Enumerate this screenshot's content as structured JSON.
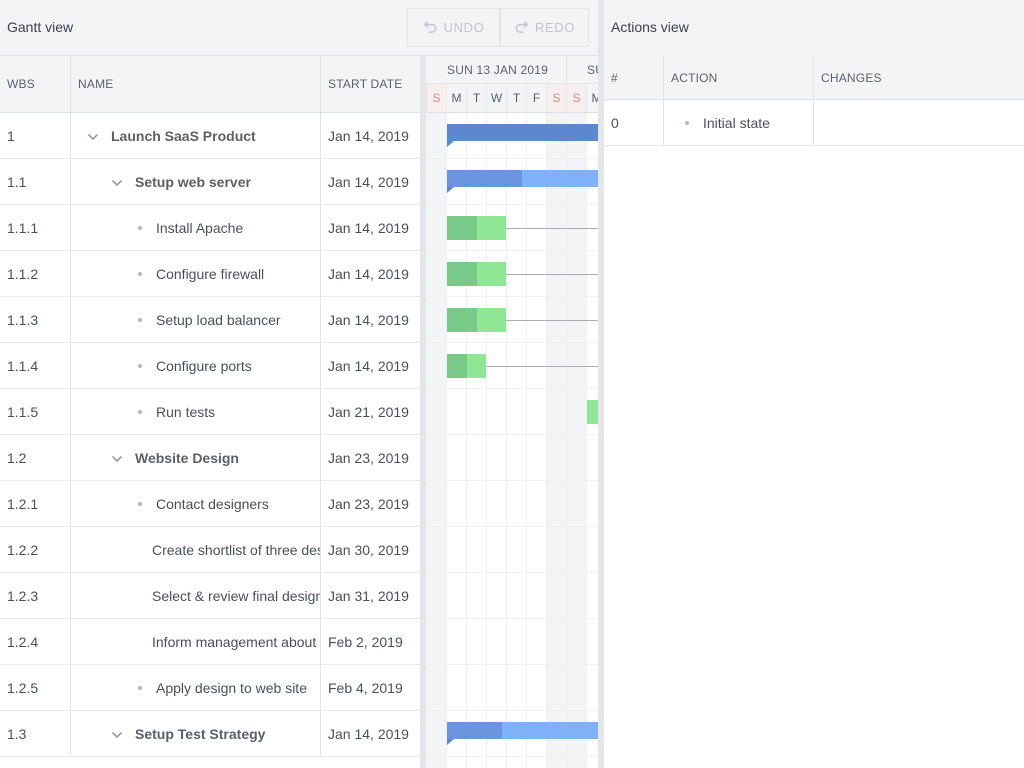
{
  "gantt": {
    "title": "Gantt view",
    "toolbar": {
      "undo_label": "UNDO",
      "redo_label": "REDO",
      "undo_icon": "undo-icon",
      "redo_icon": "redo-icon"
    },
    "columns": {
      "wbs": "WBS",
      "name": "NAME",
      "start": "START DATE"
    },
    "timeline": {
      "weeks": [
        "SUN 13 JAN 2019",
        "SU"
      ],
      "days": [
        "S",
        "M",
        "T",
        "W",
        "T",
        "F",
        "S",
        "S",
        "M"
      ]
    },
    "rows": [
      {
        "wbs": "1",
        "name": "Launch SaaS Product",
        "start": "Jan 14, 2019",
        "level": 0,
        "parent": true
      },
      {
        "wbs": "1.1",
        "name": "Setup web server",
        "start": "Jan 14, 2019",
        "level": 1,
        "parent": true
      },
      {
        "wbs": "1.1.1",
        "name": "Install Apache",
        "start": "Jan 14, 2019",
        "level": 2,
        "parent": false
      },
      {
        "wbs": "1.1.2",
        "name": "Configure firewall",
        "start": "Jan 14, 2019",
        "level": 2,
        "parent": false
      },
      {
        "wbs": "1.1.3",
        "name": "Setup load balancer",
        "start": "Jan 14, 2019",
        "level": 2,
        "parent": false
      },
      {
        "wbs": "1.1.4",
        "name": "Configure ports",
        "start": "Jan 14, 2019",
        "level": 2,
        "parent": false
      },
      {
        "wbs": "1.1.5",
        "name": "Run tests",
        "start": "Jan 21, 2019",
        "level": 2,
        "parent": false
      },
      {
        "wbs": "1.2",
        "name": "Website Design",
        "start": "Jan 23, 2019",
        "level": 1,
        "parent": true
      },
      {
        "wbs": "1.2.1",
        "name": "Contact designers",
        "start": "Jan 23, 2019",
        "level": 2,
        "parent": false
      },
      {
        "wbs": "1.2.2",
        "name": "Create shortlist of three designers",
        "start": "Jan 30, 2019",
        "level": 2,
        "parent": false
      },
      {
        "wbs": "1.2.3",
        "name": "Select & review final design",
        "start": "Jan 31, 2019",
        "level": 2,
        "parent": false
      },
      {
        "wbs": "1.2.4",
        "name": "Inform management about decision",
        "start": "Feb 2, 2019",
        "level": 2,
        "parent": false
      },
      {
        "wbs": "1.2.5",
        "name": "Apply design to web site",
        "start": "Feb 4, 2019",
        "level": 2,
        "parent": false
      },
      {
        "wbs": "1.3",
        "name": "Setup Test Strategy",
        "start": "Jan 14, 2019",
        "level": 1,
        "parent": true
      }
    ]
  },
  "actions": {
    "title": "Actions view",
    "columns": {
      "num": "#",
      "action": "ACTION",
      "changes": "CHANGES"
    },
    "rows": [
      {
        "num": "0",
        "action": "Initial state",
        "changes": ""
      }
    ]
  }
}
